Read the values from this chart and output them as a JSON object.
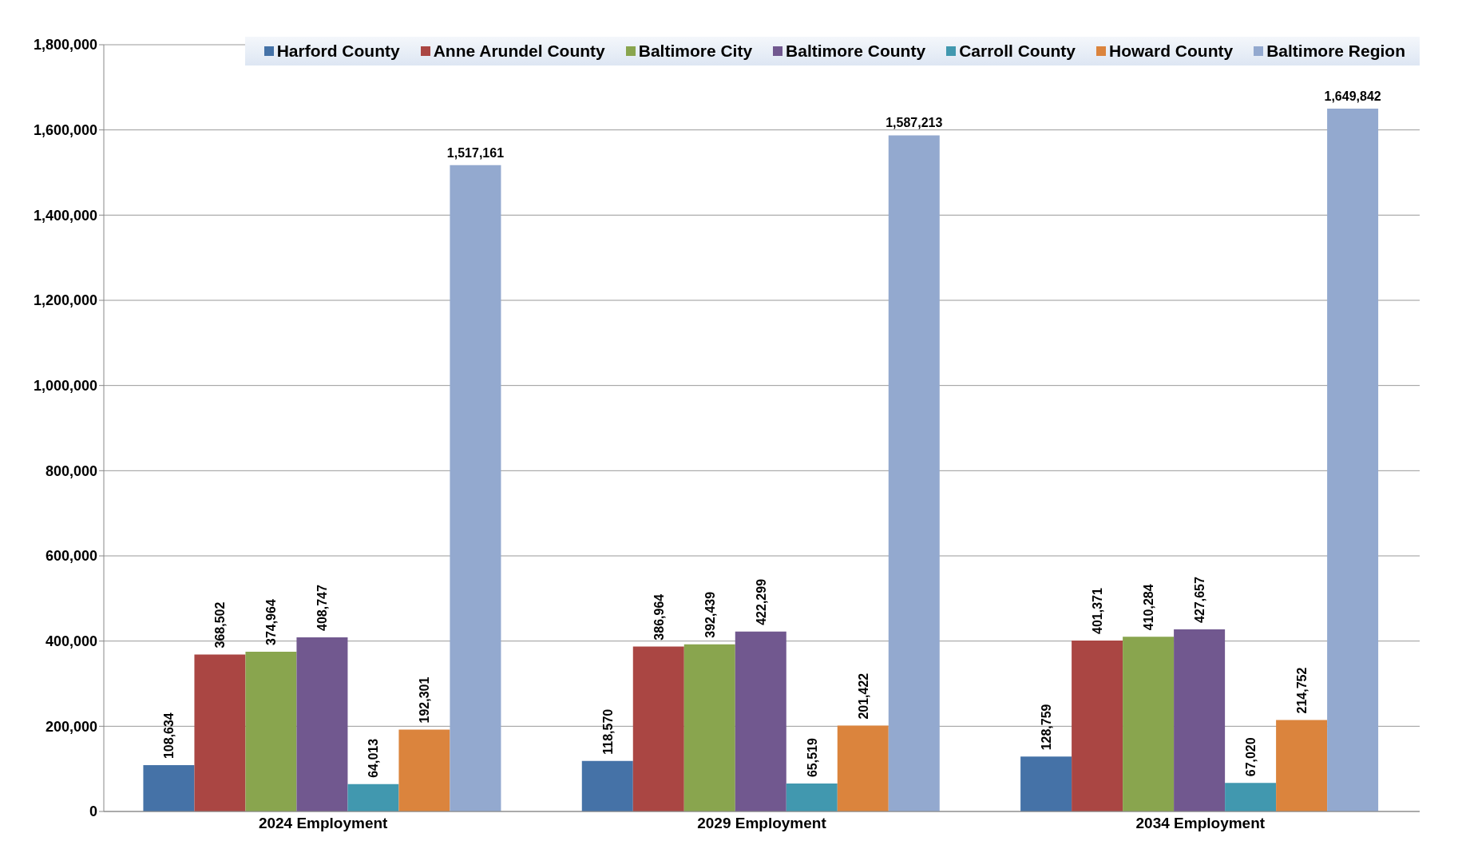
{
  "chart_data": {
    "type": "bar",
    "categories": [
      "2024 Employment",
      "2029 Employment",
      "2034 Employment"
    ],
    "series": [
      {
        "name": "Harford County",
        "color": "#4572a7",
        "values": [
          108634,
          118570,
          128759
        ],
        "value_labels": [
          "108,634",
          "118,570",
          "128,759"
        ]
      },
      {
        "name": "Anne Arundel County",
        "color": "#aa4643",
        "values": [
          368502,
          386964,
          401371
        ],
        "value_labels": [
          "368,502",
          "386,964",
          "401,371"
        ]
      },
      {
        "name": "Baltimore City",
        "color": "#89a54e",
        "values": [
          374964,
          392439,
          410284
        ],
        "value_labels": [
          "374,964",
          "392,439",
          "410,284"
        ]
      },
      {
        "name": "Baltimore County",
        "color": "#71588f",
        "values": [
          408747,
          422299,
          427657
        ],
        "value_labels": [
          "408,747",
          "422,299",
          "427,657"
        ]
      },
      {
        "name": "Carroll County",
        "color": "#4198af",
        "values": [
          64013,
          65519,
          67020
        ],
        "value_labels": [
          "64,013",
          "65,519",
          "67,020"
        ]
      },
      {
        "name": "Howard County",
        "color": "#db843d",
        "values": [
          192301,
          201422,
          214752
        ],
        "value_labels": [
          "192,301",
          "201,422",
          "214,752"
        ]
      },
      {
        "name": "Baltimore Region",
        "color": "#93a9cf",
        "values": [
          1517161,
          1587213,
          1649842
        ],
        "value_labels": [
          "1,517,161",
          "1,587,213",
          "1,649,842"
        ]
      }
    ],
    "ylim": [
      0,
      1800000
    ],
    "yticks": [
      0,
      {
        "value": 200000,
        "label": "200,000"
      },
      {
        "value": 400000,
        "label": "400,000"
      },
      {
        "value": 600000,
        "label": "600,000"
      },
      {
        "value": 800000,
        "label": "800,000"
      },
      {
        "value": 1000000,
        "label": "1,000,000"
      },
      {
        "value": 1200000,
        "label": "1,200,000"
      },
      {
        "value": 1400000,
        "label": "1,400,000"
      },
      {
        "value": 1600000,
        "label": "1,600,000"
      },
      {
        "value": 1800000,
        "label": "1,800,000"
      }
    ],
    "grid": "y",
    "legend": "top"
  }
}
